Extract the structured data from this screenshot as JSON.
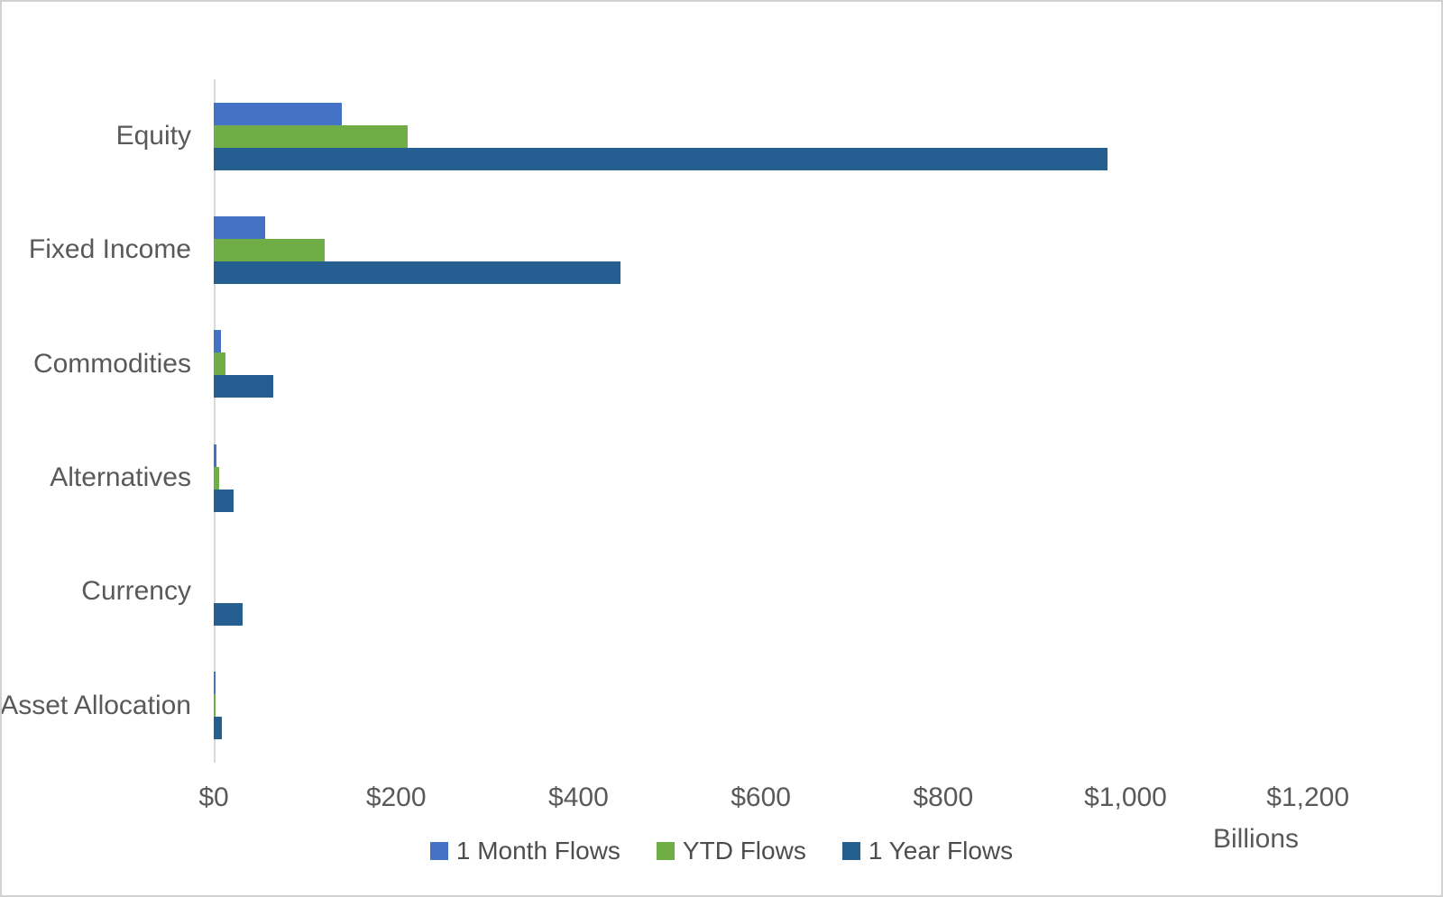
{
  "chart_data": {
    "type": "bar",
    "orientation": "horizontal",
    "title": "",
    "categories": [
      "Equity",
      "Fixed Income",
      "Commodities",
      "Alternatives",
      "Currency",
      "Asset Allocation"
    ],
    "series": [
      {
        "name": "1 Month Flows",
        "color": "#4472C4",
        "values": [
          140,
          56,
          8,
          3,
          0,
          2
        ]
      },
      {
        "name": "YTD Flows",
        "color": "#70AD47",
        "values": [
          213,
          122,
          13,
          6,
          0,
          2
        ]
      },
      {
        "name": "1 Year Flows",
        "color": "#255E91",
        "values": [
          980,
          446,
          65,
          22,
          32,
          9
        ]
      }
    ],
    "x_axis": {
      "tick_labels": [
        "$0",
        "$200",
        "$400",
        "$600",
        "$800",
        "$1,000",
        "$1,200"
      ],
      "tick_values": [
        0,
        200,
        400,
        600,
        800,
        1000,
        1200
      ],
      "range": [
        0,
        1300
      ],
      "unit_label": "Billions"
    },
    "y_axis": {
      "label": ""
    },
    "legend_position": "bottom",
    "grid": false,
    "colors": {
      "axis_line": "#d9d9d9",
      "tick_text": "#595959",
      "category_text": "#595959",
      "legend_text": "#4d4d4d",
      "frame_border": "#d2d2d2",
      "background": "#ffffff"
    }
  }
}
